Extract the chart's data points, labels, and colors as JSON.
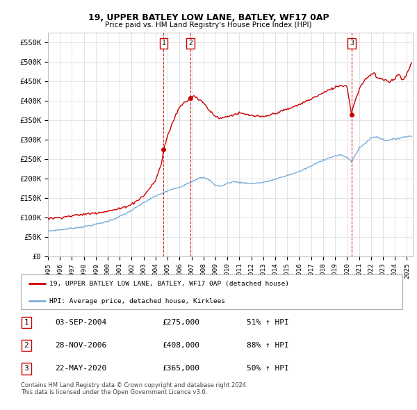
{
  "title": "19, UPPER BATLEY LOW LANE, BATLEY, WF17 0AP",
  "subtitle": "Price paid vs. HM Land Registry's House Price Index (HPI)",
  "ylabel_ticks": [
    "£0",
    "£50K",
    "£100K",
    "£150K",
    "£200K",
    "£250K",
    "£300K",
    "£350K",
    "£400K",
    "£450K",
    "£500K",
    "£550K"
  ],
  "ytick_values": [
    0,
    50000,
    100000,
    150000,
    200000,
    250000,
    300000,
    350000,
    400000,
    450000,
    500000,
    550000
  ],
  "ylim": [
    0,
    575000
  ],
  "xlim_start": 1995.0,
  "xlim_end": 2025.5,
  "sale_dates": [
    2004.67,
    2006.91,
    2020.38
  ],
  "sale_prices": [
    275000,
    408000,
    365000
  ],
  "sale_labels": [
    "1",
    "2",
    "3"
  ],
  "sale_date_strs": [
    "03-SEP-2004",
    "28-NOV-2006",
    "22-MAY-2020"
  ],
  "sale_price_strs": [
    "£275,000",
    "£408,000",
    "£365,000"
  ],
  "sale_pct_strs": [
    "51% ↑ HPI",
    "88% ↑ HPI",
    "50% ↑ HPI"
  ],
  "legend_line1": "19, UPPER BATLEY LOW LANE, BATLEY, WF17 0AP (detached house)",
  "legend_line2": "HPI: Average price, detached house, Kirklees",
  "footnote": "Contains HM Land Registry data © Crown copyright and database right 2024.\nThis data is licensed under the Open Government Licence v3.0.",
  "line_color_red": "#cc0000",
  "line_color_blue": "#7aadda",
  "grid_color": "#d8d8d8",
  "background_color": "#ffffff",
  "label_box_color": "#cc0000",
  "hpi_anchors": [
    [
      1995.0,
      65000
    ],
    [
      1996.0,
      68000
    ],
    [
      1997.0,
      72000
    ],
    [
      1998.0,
      76000
    ],
    [
      1999.0,
      82000
    ],
    [
      2000.0,
      90000
    ],
    [
      2001.0,
      102000
    ],
    [
      2002.0,
      118000
    ],
    [
      2003.0,
      138000
    ],
    [
      2004.0,
      155000
    ],
    [
      2005.0,
      168000
    ],
    [
      2006.0,
      178000
    ],
    [
      2007.0,
      192000
    ],
    [
      2007.5,
      200000
    ],
    [
      2008.0,
      202000
    ],
    [
      2008.5,
      196000
    ],
    [
      2009.0,
      183000
    ],
    [
      2009.5,
      180000
    ],
    [
      2010.0,
      188000
    ],
    [
      2010.5,
      192000
    ],
    [
      2011.0,
      190000
    ],
    [
      2012.0,
      187000
    ],
    [
      2013.0,
      190000
    ],
    [
      2014.0,
      198000
    ],
    [
      2015.0,
      208000
    ],
    [
      2016.0,
      218000
    ],
    [
      2017.0,
      232000
    ],
    [
      2018.0,
      248000
    ],
    [
      2019.0,
      258000
    ],
    [
      2019.5,
      260000
    ],
    [
      2020.0,
      255000
    ],
    [
      2020.38,
      243000
    ],
    [
      2020.5,
      252000
    ],
    [
      2020.8,
      265000
    ],
    [
      2021.0,
      278000
    ],
    [
      2021.5,
      290000
    ],
    [
      2022.0,
      305000
    ],
    [
      2022.5,
      308000
    ],
    [
      2023.0,
      300000
    ],
    [
      2023.5,
      298000
    ],
    [
      2024.0,
      302000
    ],
    [
      2024.5,
      305000
    ],
    [
      2025.4,
      310000
    ]
  ],
  "red_anchors": [
    [
      1995.0,
      97000
    ],
    [
      1996.0,
      100000
    ],
    [
      1997.0,
      104000
    ],
    [
      1998.0,
      108000
    ],
    [
      1999.0,
      112000
    ],
    [
      2000.0,
      116000
    ],
    [
      2001.0,
      122000
    ],
    [
      2002.0,
      134000
    ],
    [
      2003.0,
      155000
    ],
    [
      2004.0,
      195000
    ],
    [
      2004.5,
      240000
    ],
    [
      2004.67,
      275000
    ],
    [
      2005.0,
      310000
    ],
    [
      2005.5,
      350000
    ],
    [
      2006.0,
      385000
    ],
    [
      2006.91,
      408000
    ],
    [
      2007.2,
      415000
    ],
    [
      2007.5,
      405000
    ],
    [
      2008.0,
      395000
    ],
    [
      2008.5,
      375000
    ],
    [
      2009.0,
      360000
    ],
    [
      2009.5,
      355000
    ],
    [
      2010.0,
      360000
    ],
    [
      2011.0,
      368000
    ],
    [
      2012.0,
      362000
    ],
    [
      2013.0,
      358000
    ],
    [
      2014.0,
      368000
    ],
    [
      2015.0,
      378000
    ],
    [
      2016.0,
      390000
    ],
    [
      2017.0,
      405000
    ],
    [
      2018.0,
      420000
    ],
    [
      2019.0,
      435000
    ],
    [
      2019.5,
      440000
    ],
    [
      2020.0,
      438000
    ],
    [
      2020.38,
      365000
    ],
    [
      2020.5,
      385000
    ],
    [
      2020.8,
      410000
    ],
    [
      2021.0,
      430000
    ],
    [
      2021.5,
      455000
    ],
    [
      2022.0,
      468000
    ],
    [
      2022.3,
      472000
    ],
    [
      2022.5,
      458000
    ],
    [
      2023.0,
      455000
    ],
    [
      2023.5,
      448000
    ],
    [
      2024.0,
      458000
    ],
    [
      2024.3,
      470000
    ],
    [
      2024.6,
      455000
    ],
    [
      2024.9,
      462000
    ],
    [
      2025.4,
      498000
    ]
  ]
}
